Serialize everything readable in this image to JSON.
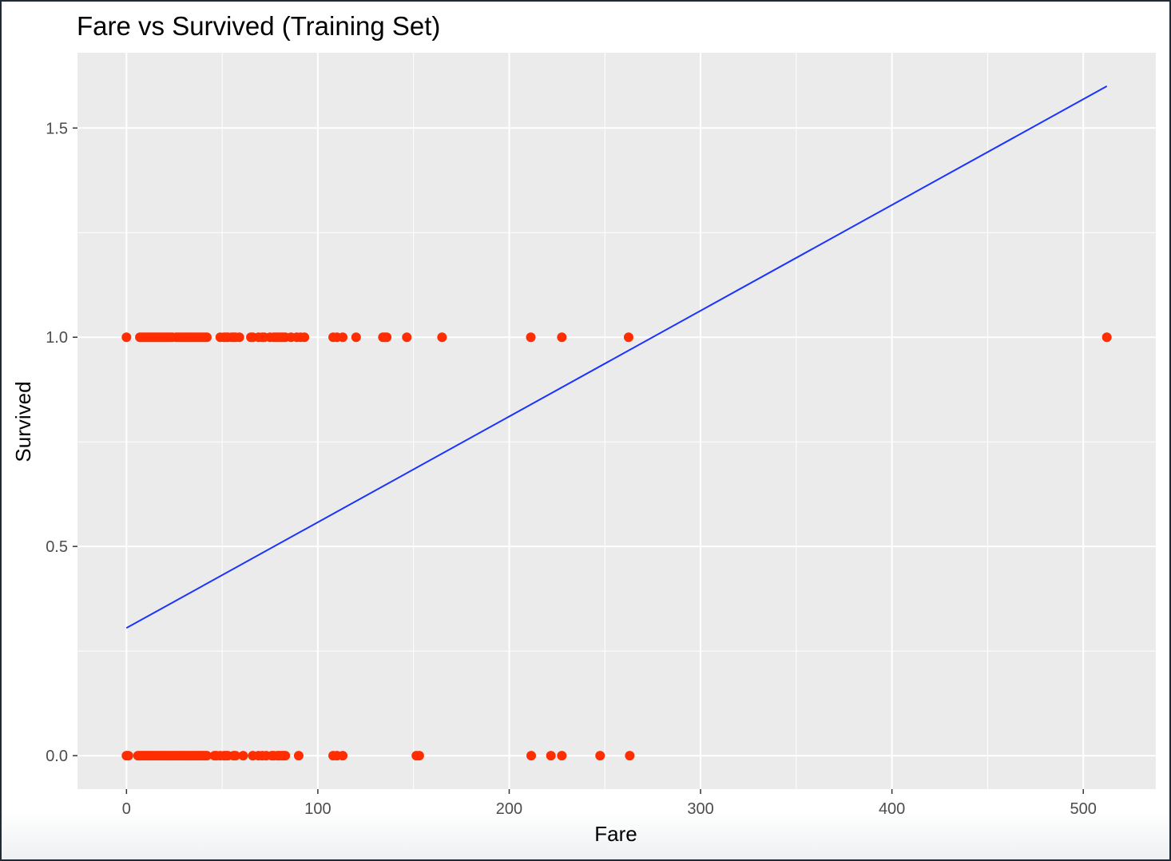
{
  "chart_data": {
    "type": "scatter",
    "title": "Fare vs Survived (Training Set)",
    "xlabel": "Fare",
    "ylabel": "Survived",
    "xlim": [
      -25.6,
      537.9
    ],
    "ylim": [
      -0.08,
      1.68
    ],
    "x_ticks": [
      0,
      100,
      200,
      300,
      400,
      500
    ],
    "x_tick_labels": [
      "0",
      "100",
      "200",
      "300",
      "400",
      "500"
    ],
    "y_ticks": [
      0.0,
      0.5,
      1.0,
      1.5
    ],
    "y_tick_labels": [
      "0.0",
      "0.5",
      "1.0",
      "1.5"
    ],
    "grid": true,
    "legend": "none",
    "colors": {
      "points": "#ff2d00",
      "line": "#1a33ff",
      "panel": "#ebebeb",
      "grid": "#ffffff"
    },
    "series": [
      {
        "type": "points",
        "x": [
          0,
          7,
          8,
          9,
          10,
          11,
          12,
          13,
          14,
          15,
          16,
          17,
          18,
          19,
          20,
          21,
          22,
          23,
          24,
          26,
          27,
          28,
          29,
          30,
          31,
          32,
          33,
          34,
          35,
          36,
          37,
          38,
          39,
          40,
          41,
          42,
          49,
          51,
          52,
          53,
          55,
          56,
          57,
          59,
          65,
          66,
          69,
          71,
          72,
          75,
          77,
          78,
          79,
          80,
          81,
          82,
          83,
          86,
          89,
          91,
          93,
          108,
          110,
          113,
          120,
          134,
          135,
          136,
          146.5,
          164.9,
          211.3,
          227.5,
          262.4,
          512.3,
          0,
          1,
          6,
          7,
          8,
          9,
          10,
          11,
          12,
          13,
          14,
          15,
          16,
          17,
          18,
          19,
          20,
          21,
          22,
          23,
          24,
          25,
          26,
          27,
          28,
          29,
          30,
          31,
          32,
          33,
          34,
          35,
          36,
          37,
          38,
          39,
          40,
          41,
          42,
          46,
          47,
          49,
          51,
          52,
          53,
          56,
          57,
          61,
          66,
          69,
          71,
          73,
          76,
          77,
          79,
          80,
          81,
          82,
          83,
          90,
          108,
          110,
          113,
          151.5,
          153,
          211.5,
          221.8,
          227.5,
          247.5,
          263
        ],
        "y": [
          1,
          1,
          1,
          1,
          1,
          1,
          1,
          1,
          1,
          1,
          1,
          1,
          1,
          1,
          1,
          1,
          1,
          1,
          1,
          1,
          1,
          1,
          1,
          1,
          1,
          1,
          1,
          1,
          1,
          1,
          1,
          1,
          1,
          1,
          1,
          1,
          1,
          1,
          1,
          1,
          1,
          1,
          1,
          1,
          1,
          1,
          1,
          1,
          1,
          1,
          1,
          1,
          1,
          1,
          1,
          1,
          1,
          1,
          1,
          1,
          1,
          1,
          1,
          1,
          1,
          1,
          1,
          1,
          1,
          1,
          1,
          1,
          1,
          1,
          0,
          0,
          0,
          0,
          0,
          0,
          0,
          0,
          0,
          0,
          0,
          0,
          0,
          0,
          0,
          0,
          0,
          0,
          0,
          0,
          0,
          0,
          0,
          0,
          0,
          0,
          0,
          0,
          0,
          0,
          0,
          0,
          0,
          0,
          0,
          0,
          0,
          0,
          0,
          0,
          0,
          0,
          0,
          0,
          0,
          0,
          0,
          0,
          0,
          0,
          0,
          0,
          0,
          0,
          0,
          0,
          0,
          0,
          0,
          0,
          0,
          0,
          0,
          0,
          0,
          0,
          0,
          0,
          0,
          0
        ]
      },
      {
        "type": "line",
        "x": [
          0,
          512.3
        ],
        "y": [
          0.305,
          1.6
        ]
      }
    ]
  }
}
